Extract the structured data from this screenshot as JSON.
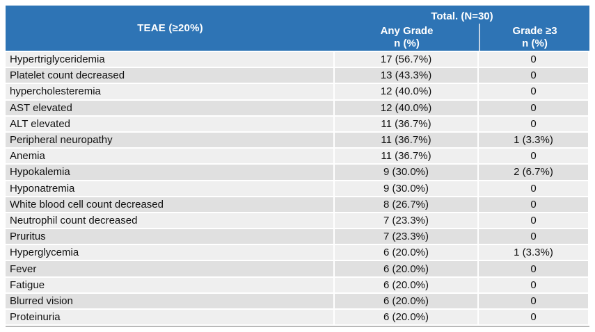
{
  "colors": {
    "header_bg": "#2E74B5",
    "header_text": "#FFFFFF",
    "divider": "#C3D3E4",
    "row_light": "#EFEFEF",
    "row_dark": "#E0E0E0",
    "body_text": "#111111",
    "bottom_rule": "#B9B9B9"
  },
  "table": {
    "header": {
      "total": "Total. (N=30)",
      "teae_col": "TEAE (≥20%)",
      "any_grade": "Any Grade",
      "grade_ge3": "Grade ≥3",
      "n_pct": "n (%)"
    },
    "rows": [
      {
        "teae": "Hypertriglyceridemia",
        "any_grade": "17 (56.7%)",
        "grade3": "0"
      },
      {
        "teae": "Platelet count decreased",
        "any_grade": "13 (43.3%)",
        "grade3": "0"
      },
      {
        "teae": "hypercholesteremia",
        "any_grade": "12 (40.0%)",
        "grade3": "0"
      },
      {
        "teae": "AST elevated",
        "any_grade": "12 (40.0%)",
        "grade3": "0"
      },
      {
        "teae": "ALT elevated",
        "any_grade": "11 (36.7%)",
        "grade3": "0"
      },
      {
        "teae": "Peripheral neuropathy",
        "any_grade": "11 (36.7%)",
        "grade3": "1 (3.3%)"
      },
      {
        "teae": "Anemia",
        "any_grade": "11 (36.7%)",
        "grade3": "0"
      },
      {
        "teae": "Hypokalemia",
        "any_grade": "9 (30.0%)",
        "grade3": "2 (6.7%)"
      },
      {
        "teae": "Hyponatremia",
        "any_grade": "9 (30.0%)",
        "grade3": "0"
      },
      {
        "teae": "White blood cell count decreased",
        "any_grade": "8 (26.7%)",
        "grade3": "0"
      },
      {
        "teae": "Neutrophil count decreased",
        "any_grade": "7 (23.3%)",
        "grade3": "0"
      },
      {
        "teae": "Pruritus",
        "any_grade": "7 (23.3%)",
        "grade3": "0"
      },
      {
        "teae": "Hyperglycemia",
        "any_grade": "6 (20.0%)",
        "grade3": "1 (3.3%)"
      },
      {
        "teae": "Fever",
        "any_grade": "6 (20.0%)",
        "grade3": "0"
      },
      {
        "teae": "Fatigue",
        "any_grade": "6 (20.0%)",
        "grade3": "0"
      },
      {
        "teae": "Blurred vision",
        "any_grade": "6 (20.0%)",
        "grade3": "0"
      },
      {
        "teae": "Proteinuria",
        "any_grade": "6 (20.0%)",
        "grade3": "0"
      }
    ]
  }
}
